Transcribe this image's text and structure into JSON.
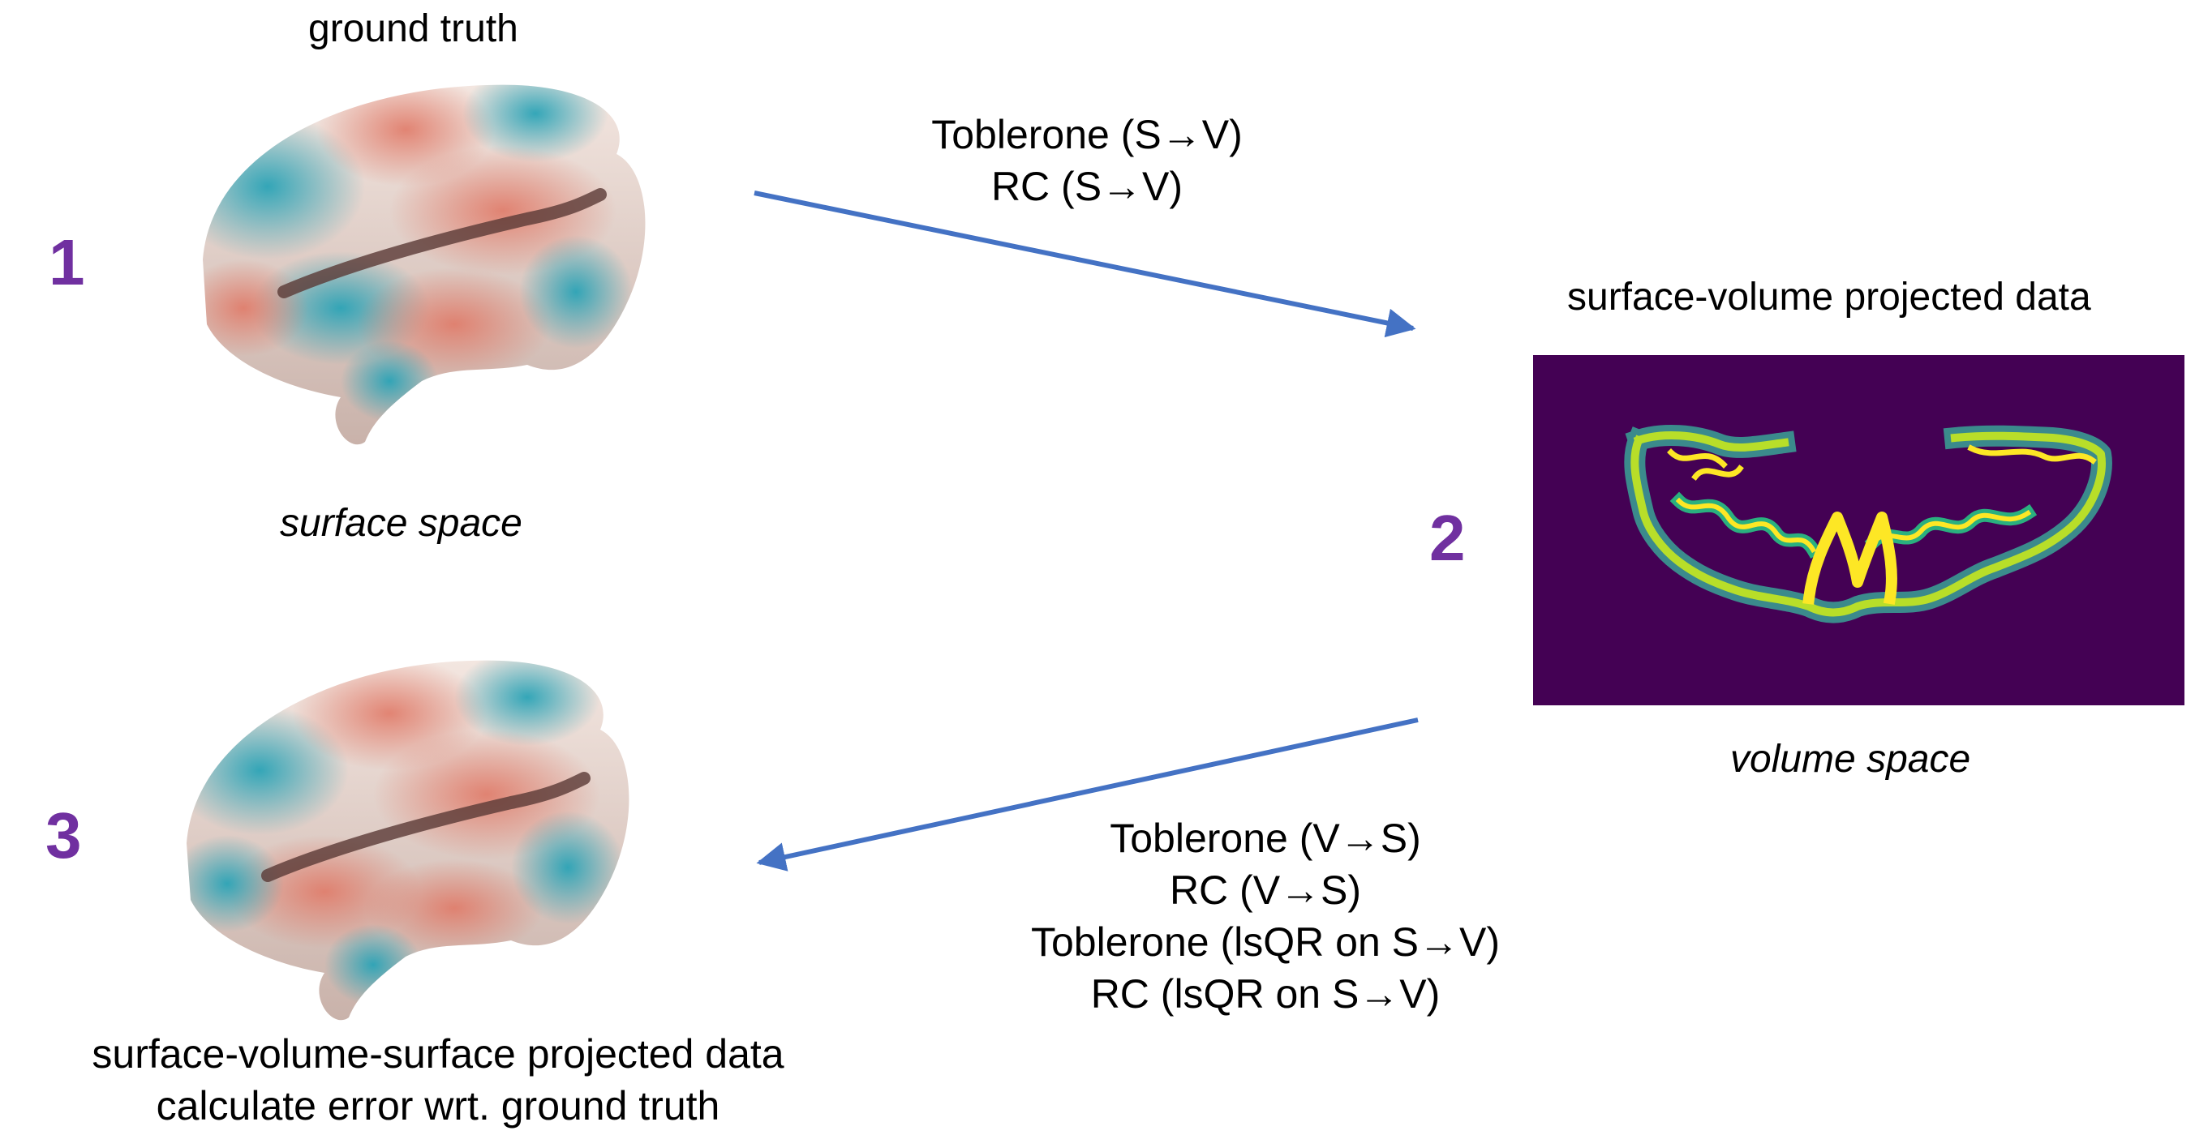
{
  "colors": {
    "step_number": "#7030a0",
    "arrow": "#4472c4",
    "volume_background": "#440154",
    "surface_warm": "#e8907e",
    "surface_cool": "#3aa9b8"
  },
  "surface_top": {
    "label_above": "ground truth",
    "step": "1",
    "space_label": "surface space"
  },
  "forward_projection": {
    "methods": [
      "Toblerone (S→V)",
      "RC (S→V)"
    ]
  },
  "volume": {
    "label_above": "surface-volume projected data",
    "step": "2",
    "space_label": "volume space"
  },
  "backward_projection": {
    "methods": [
      "Toblerone (V→S)",
      "RC (V→S)",
      "Toblerone (lsQR on S→V)",
      "RC (lsQR on S→V)"
    ]
  },
  "surface_bottom": {
    "step": "3",
    "caption_lines": [
      "surface-volume-surface projected data",
      "calculate error wrt. ground truth"
    ]
  }
}
